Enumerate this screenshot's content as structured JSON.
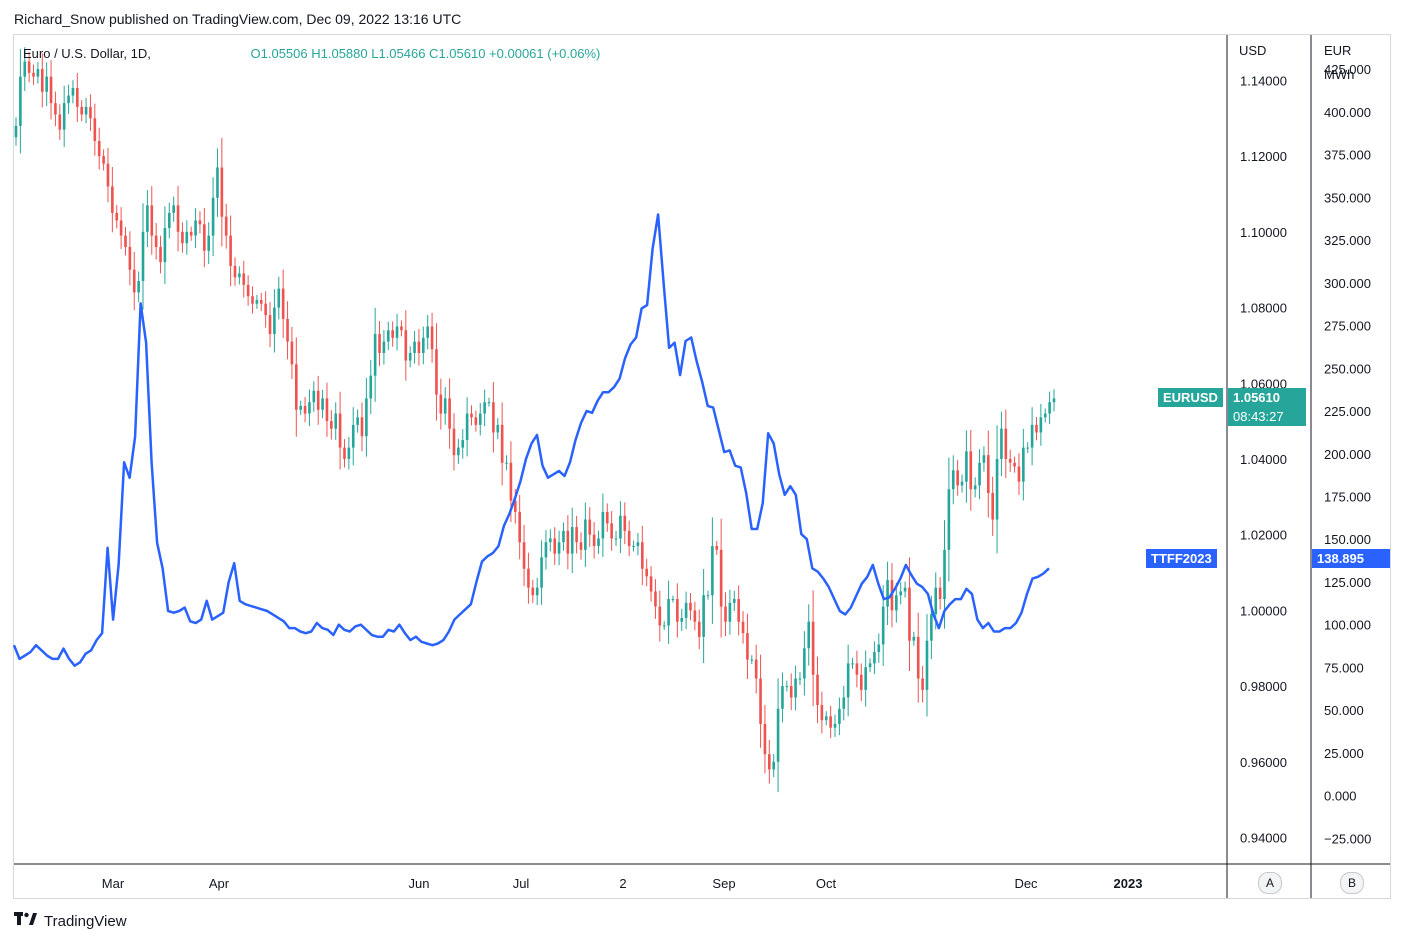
{
  "header": {
    "publisher": "Richard_Snow published on TradingView.com, Dec 09, 2022 13:16 UTC"
  },
  "legend": {
    "symbol": "Euro / U.S. Dollar, 1D,",
    "ohlc": "O1.05506  H1.05880  L1.05466  C1.05610  +0.00061 (+0.06%)"
  },
  "axes": {
    "usd_head": "USD",
    "eur_head": "EUR",
    "eur_unit": "MWh",
    "scale_a": "A",
    "scale_b": "B"
  },
  "tags": {
    "eurusd_label": "EURUSD",
    "eurusd_price": "1.05610",
    "eurusd_countdown": "08:43:27",
    "ttf_label": "TTFF2023",
    "ttf_price": "138.895"
  },
  "brand": {
    "name": "TradingView"
  },
  "colors": {
    "up": "#26a69a",
    "down": "#ef5350",
    "ttf_line": "#2962ff",
    "eurusd_tag": "#26a69a"
  },
  "chart_data": {
    "type": "line",
    "title": "Euro / U.S. Dollar, 1D,",
    "x_tick_labels": [
      "Mar",
      "Apr",
      "Jun",
      "Jul",
      "2",
      "Sep",
      "Oct",
      "Dec",
      "2023"
    ],
    "left_axis": {
      "unit": "USD",
      "ticks": [
        "1.14000",
        "1.12000",
        "1.10000",
        "1.08000",
        "1.06000",
        "1.04000",
        "1.02000",
        "1.00000",
        "0.98000",
        "0.96000",
        "0.94000"
      ],
      "range": [
        0.933,
        1.152
      ]
    },
    "right_axis": {
      "unit": "EUR MWh",
      "ticks": [
        "425.000",
        "400.000",
        "375.000",
        "350.000",
        "325.000",
        "300.000",
        "275.000",
        "250.000",
        "225.000",
        "200.000",
        "175.000",
        "150.000",
        "125.000",
        "100.000",
        "75.000",
        "50.000",
        "25.000",
        "0.000",
        "-25.000"
      ],
      "range": [
        -40,
        445
      ]
    },
    "series": [
      {
        "name": "EURUSD",
        "kind": "candlestick",
        "x_range": [
          "Feb 01, 2022",
          "Dec 09, 2022"
        ],
        "closes": [
          1.128,
          1.141,
          1.145,
          1.142,
          1.141,
          1.143,
          1.137,
          1.141,
          1.134,
          1.131,
          1.127,
          1.134,
          1.136,
          1.138,
          1.133,
          1.131,
          1.133,
          1.13,
          1.124,
          1.12,
          1.118,
          1.112,
          1.105,
          1.103,
          1.099,
          1.096,
          1.09,
          1.084,
          1.087,
          1.1,
          1.107,
          1.099,
          1.096,
          1.092,
          1.101,
          1.105,
          1.107,
          1.1,
          1.097,
          1.1,
          1.099,
          1.103,
          1.102,
          1.095,
          1.099,
          1.109,
          1.117,
          1.104,
          1.099,
          1.091,
          1.088,
          1.089,
          1.086,
          1.083,
          1.081,
          1.082,
          1.081,
          1.078,
          1.073,
          1.08,
          1.085,
          1.077,
          1.071,
          1.065,
          1.053,
          1.054,
          1.052,
          1.055,
          1.058,
          1.053,
          1.056,
          1.05,
          1.048,
          1.052,
          1.043,
          1.04,
          1.043,
          1.049,
          1.051,
          1.046,
          1.056,
          1.062,
          1.073,
          1.068,
          1.071,
          1.074,
          1.072,
          1.075,
          1.074,
          1.066,
          1.068,
          1.071,
          1.068,
          1.072,
          1.075,
          1.069,
          1.057,
          1.052,
          1.056,
          1.048,
          1.041,
          1.043,
          1.045,
          1.052,
          1.051,
          1.049,
          1.052,
          1.055,
          1.055,
          1.047,
          1.049,
          1.039,
          1.039,
          1.029,
          1.026,
          1.018,
          1.011,
          1.006,
          1.004,
          1.006,
          1.014,
          1.018,
          1.019,
          1.015,
          1.018,
          1.021,
          1.015,
          1.022,
          1.018,
          1.016,
          1.024,
          1.02,
          1.017,
          1.019,
          1.026,
          1.023,
          1.019,
          1.019,
          1.025,
          1.021,
          1.017,
          1.017,
          1.018,
          1.011,
          1.009,
          1.005,
          1.001,
          0.996,
          0.996,
          1.003,
          1.003,
          0.997,
          0.998,
          1.002,
          1,
          0.997,
          0.993,
          1.004,
          1.004,
          1.017,
          1.016,
          1.001,
          0.997,
          1.002,
          1.003,
          0.997,
          0.994,
          0.987,
          0.987,
          0.982,
          0.97,
          0.962,
          0.958,
          0.96,
          0.974,
          0.98,
          0.98,
          0.977,
          0.982,
          0.982,
          0.99,
          0.997,
          0.983,
          0.975,
          0.971,
          0.972,
          0.969,
          0.97,
          0.974,
          0.977,
          0.986,
          0.986,
          0.983,
          0.979,
          0.985,
          0.986,
          0.989,
          0.991,
          1.001,
          1.008,
          1,
          1.004,
          1.005,
          1.006,
          0.992,
          0.993,
          0.982,
          0.979,
          0.992,
          0.999,
          1.006,
          1.003,
          1.016,
          1.032,
          1.037,
          1.033,
          1.034,
          1.042,
          1.032,
          1.033,
          1.039,
          1.041,
          1.031,
          1.024,
          1.04,
          1.048,
          1.04,
          1.039,
          1.038,
          1.034,
          1.043,
          1.043,
          1.049,
          1.047,
          1.051,
          1.052,
          1.055,
          1.056
        ],
        "last": 1.0561
      },
      {
        "name": "TTFF2023",
        "kind": "line",
        "x_range": [
          "Feb 01, 2022",
          "Dec 09, 2022"
        ],
        "values": [
          88,
          80,
          82,
          84,
          88,
          85,
          82,
          80,
          80,
          86,
          80,
          76,
          78,
          83,
          85,
          91,
          95,
          145,
          103,
          135,
          195,
          186,
          210,
          288,
          265,
          195,
          148,
          133,
          108,
          107,
          108,
          110,
          102,
          101,
          103,
          114,
          103,
          105,
          107,
          125,
          136,
          114,
          112,
          111,
          110,
          109,
          108,
          106,
          104,
          102,
          98,
          98,
          96,
          95,
          96,
          101,
          98,
          97,
          94,
          100,
          97,
          96,
          99,
          100,
          97,
          94,
          93,
          93,
          97,
          96,
          100,
          95,
          91,
          93,
          90,
          89,
          88,
          89,
          91,
          96,
          103,
          106,
          109,
          112,
          125,
          137,
          140,
          142,
          146,
          158,
          165,
          174,
          184,
          197,
          206,
          211,
          193,
          186,
          188,
          190,
          187,
          195,
          208,
          218,
          225,
          224,
          231,
          236,
          236,
          239,
          244,
          256,
          264,
          268,
          285,
          287,
          320,
          340,
          300,
          262,
          265,
          246,
          266,
          268,
          254,
          242,
          228,
          227,
          214,
          201,
          202,
          193,
          192,
          177,
          156,
          156,
          171,
          212,
          206,
          188,
          176,
          181,
          176,
          153,
          150,
          133,
          131,
          127,
          122,
          115,
          108,
          106,
          110,
          117,
          124,
          128,
          135,
          124,
          115,
          116,
          121,
          127,
          135,
          129,
          124,
          122,
          118,
          106,
          98,
          108,
          112,
          115,
          115,
          121,
          118,
          103,
          98,
          101,
          96,
          96,
          98,
          98,
          101,
          107,
          118,
          127,
          128,
          130,
          133
        ],
        "last": 138.895
      }
    ],
    "grid": false,
    "legend": "top-left"
  }
}
